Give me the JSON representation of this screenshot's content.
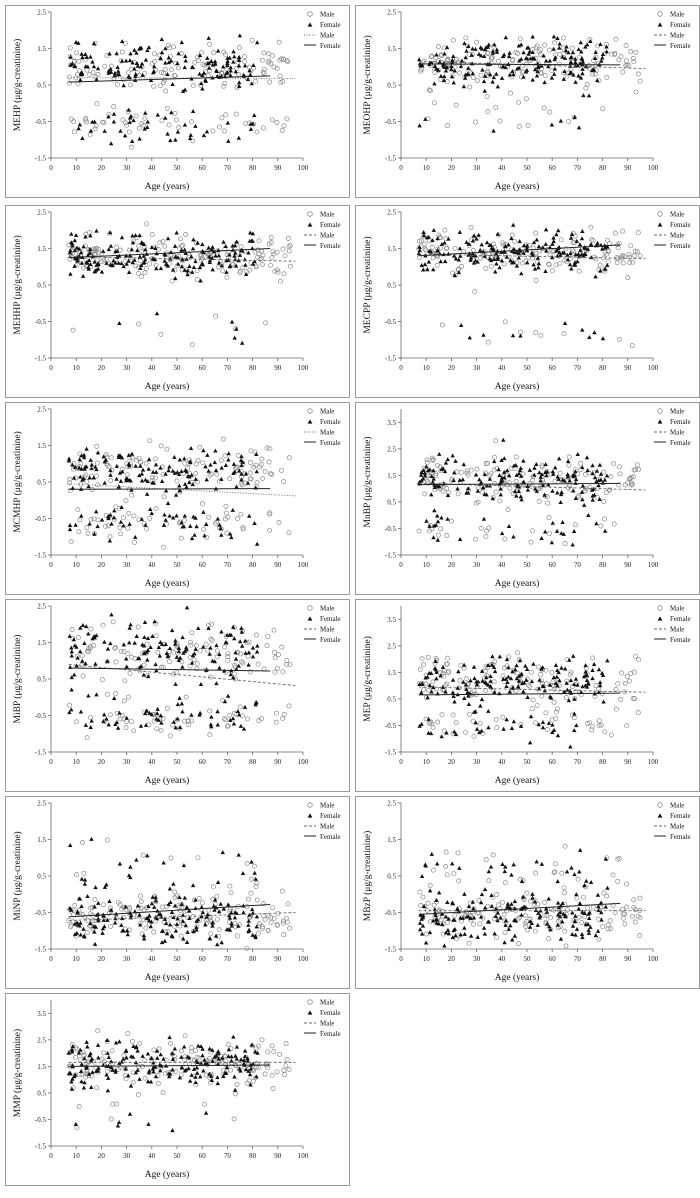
{
  "legend_labels": [
    "Male",
    "Female",
    "Male",
    "Female"
  ],
  "colors": {
    "male_marker": "#8a8a8a",
    "female_marker": "#111111",
    "male_line": "#666666",
    "female_line": "#222222"
  },
  "chart_data": [
    {
      "type": "scatter",
      "xlabel": "Age (years)",
      "ylabel": "MEHP (μg/g-creatinine)",
      "xlim": [
        0,
        100
      ],
      "xticks": [
        0,
        10,
        20,
        30,
        40,
        50,
        60,
        70,
        80,
        90,
        100
      ],
      "ylim": [
        -1.5,
        2.5
      ],
      "yticks": [
        "-1.5",
        "-0.5",
        "0.5",
        "1.5",
        "2.5"
      ],
      "upper_mean": 1.0,
      "upper_sd": 0.32,
      "lower_mean": -0.6,
      "lower_sd": 0.22,
      "lower_frac": 0.22,
      "trend_male": [
        [
          7,
          0.7
        ],
        [
          97,
          0.68
        ]
      ],
      "trend_female": [
        [
          7,
          0.58
        ],
        [
          87,
          0.75
        ]
      ],
      "male_line_style": "dotted"
    },
    {
      "type": "scatter",
      "xlabel": "Age (years)",
      "ylabel": "MEOHP (μg/g-creatinine)",
      "xlim": [
        0,
        100
      ],
      "xticks": [
        0,
        10,
        20,
        30,
        40,
        50,
        60,
        70,
        80,
        90,
        100
      ],
      "ylim": [
        -1.5,
        2.5
      ],
      "yticks": [
        "-1.5",
        "-0.5",
        "0.5",
        "1.5",
        "2.5"
      ],
      "upper_mean": 1.1,
      "upper_sd": 0.3,
      "lower_mean": -0.35,
      "lower_sd": 0.3,
      "lower_frac": 0.07,
      "trend_male": [
        [
          7,
          1.15
        ],
        [
          97,
          0.95
        ]
      ],
      "trend_female": [
        [
          7,
          1.08
        ],
        [
          87,
          1.05
        ]
      ],
      "male_line_style": "dashed"
    },
    {
      "type": "scatter",
      "xlabel": "Age (years)",
      "ylabel": "MEHHP (μg/g-creatinine)",
      "xlim": [
        0,
        100
      ],
      "xticks": [
        0,
        10,
        20,
        30,
        40,
        50,
        60,
        70,
        80,
        90,
        100
      ],
      "ylim": [
        -1.5,
        2.5
      ],
      "yticks": [
        "-1.5",
        "-0.5",
        "0.5",
        "1.5",
        "2.5"
      ],
      "upper_mean": 1.3,
      "upper_sd": 0.27,
      "lower_mean": -0.7,
      "lower_sd": 0.2,
      "lower_frac": 0.03,
      "trend_male": [
        [
          7,
          1.28
        ],
        [
          97,
          1.15
        ]
      ],
      "trend_female": [
        [
          7,
          1.25
        ],
        [
          87,
          1.5
        ]
      ],
      "male_line_style": "dashed"
    },
    {
      "type": "scatter",
      "xlabel": "Age (years)",
      "ylabel": "MECPP (μg/g-creatinine)",
      "xlim": [
        0,
        100
      ],
      "xticks": [
        0,
        10,
        20,
        30,
        40,
        50,
        60,
        70,
        80,
        90,
        100
      ],
      "ylim": [
        -1.5,
        2.5
      ],
      "yticks": [
        "-1.5",
        "-0.5",
        "0.5",
        "1.5",
        "2.5"
      ],
      "upper_mean": 1.4,
      "upper_sd": 0.3,
      "lower_mean": -0.85,
      "lower_sd": 0.2,
      "lower_frac": 0.04,
      "trend_male": [
        [
          7,
          1.35
        ],
        [
          97,
          1.22
        ]
      ],
      "trend_female": [
        [
          7,
          1.3
        ],
        [
          87,
          1.6
        ]
      ],
      "male_line_style": "dashed"
    },
    {
      "type": "scatter",
      "xlabel": "Age (years)",
      "ylabel": "MCMHP (μg/g-creatinine)",
      "xlim": [
        0,
        100
      ],
      "xticks": [
        0,
        10,
        20,
        30,
        40,
        50,
        60,
        70,
        80,
        90,
        100
      ],
      "ylim": [
        -1.5,
        2.5
      ],
      "yticks": [
        "-1.5",
        "-0.5",
        "0.5",
        "1.5",
        "2.5"
      ],
      "upper_mean": 0.8,
      "upper_sd": 0.3,
      "lower_mean": -0.65,
      "lower_sd": 0.22,
      "lower_frac": 0.3,
      "trend_male": [
        [
          7,
          0.45
        ],
        [
          97,
          0.12
        ]
      ],
      "trend_female": [
        [
          7,
          0.3
        ],
        [
          87,
          0.32
        ]
      ],
      "male_line_style": "dotted"
    },
    {
      "type": "scatter",
      "xlabel": "Age (years)",
      "ylabel": "MnBP (μg/g-creatinine)",
      "xlim": [
        0,
        100
      ],
      "xticks": [
        0,
        10,
        20,
        30,
        40,
        50,
        60,
        70,
        80,
        90,
        100
      ],
      "ylim": [
        -1.5,
        4
      ],
      "yticks": [
        "-1.5",
        "-0.5",
        "0.5",
        "1.5",
        "2.5",
        "3.5"
      ],
      "upper_mean": 1.35,
      "upper_sd": 0.45,
      "lower_mean": -0.6,
      "lower_sd": 0.3,
      "lower_frac": 0.12,
      "trend_male": [
        [
          7,
          1.2
        ],
        [
          97,
          0.95
        ]
      ],
      "trend_female": [
        [
          7,
          1.15
        ],
        [
          87,
          1.2
        ]
      ],
      "male_line_style": "dashed"
    },
    {
      "type": "scatter",
      "xlabel": "Age (years)",
      "ylabel": "MiBP (μg/g-creatinine)",
      "xlim": [
        0,
        100
      ],
      "xticks": [
        0,
        10,
        20,
        30,
        40,
        50,
        60,
        70,
        80,
        90,
        100
      ],
      "ylim": [
        -1.5,
        2.5
      ],
      "yticks": [
        "-1.5",
        "-0.5",
        "0.5",
        "1.5",
        "2.5"
      ],
      "upper_mean": 1.2,
      "upper_sd": 0.4,
      "lower_mean": -0.55,
      "lower_sd": 0.25,
      "lower_frac": 0.28,
      "trend_male": [
        [
          7,
          0.9
        ],
        [
          97,
          0.32
        ]
      ],
      "trend_female": [
        [
          7,
          0.8
        ],
        [
          87,
          0.72
        ]
      ],
      "male_line_style": "dashed"
    },
    {
      "type": "scatter",
      "xlabel": "Age (years)",
      "ylabel": "MEP (μg/g-creatinine)",
      "xlim": [
        0,
        100
      ],
      "xticks": [
        0,
        10,
        20,
        30,
        40,
        50,
        60,
        70,
        80,
        90,
        100
      ],
      "ylim": [
        -1.5,
        4
      ],
      "yticks": [
        "-1.5",
        "-0.5",
        "0.5",
        "1.5",
        "2.5",
        "3.5"
      ],
      "upper_mean": 1.2,
      "upper_sd": 0.45,
      "lower_mean": -0.5,
      "lower_sd": 0.3,
      "lower_frac": 0.22,
      "trend_male": [
        [
          7,
          0.95
        ],
        [
          97,
          0.75
        ]
      ],
      "trend_female": [
        [
          7,
          0.65
        ],
        [
          87,
          0.72
        ]
      ],
      "male_line_style": "dashed"
    },
    {
      "type": "scatter",
      "xlabel": "Age (years)",
      "ylabel": "MiNP (μg/g-creatinine)",
      "xlim": [
        0,
        100
      ],
      "xticks": [
        0,
        10,
        20,
        30,
        40,
        50,
        60,
        70,
        80,
        90,
        100
      ],
      "ylim": [
        -1.5,
        2.5
      ],
      "yticks": [
        "-1.5",
        "-0.5",
        "0.5",
        "1.5",
        "2.5"
      ],
      "upper_mean": 0.4,
      "upper_sd": 0.45,
      "lower_mean": -0.65,
      "lower_sd": 0.3,
      "lower_frac": 0.85,
      "trend_male": [
        [
          7,
          -0.72
        ],
        [
          97,
          -0.5
        ]
      ],
      "trend_female": [
        [
          7,
          -0.62
        ],
        [
          87,
          -0.28
        ]
      ],
      "male_line_style": "dashed"
    },
    {
      "type": "scatter",
      "xlabel": "Age (years)",
      "ylabel": "MBzP (μg/g-creatinine)",
      "xlim": [
        0,
        100
      ],
      "xticks": [
        0,
        10,
        20,
        30,
        40,
        50,
        60,
        70,
        80,
        90,
        100
      ],
      "ylim": [
        -1.5,
        2.5
      ],
      "yticks": [
        "-1.5",
        "-0.5",
        "0.5",
        "1.5",
        "2.5"
      ],
      "upper_mean": 0.55,
      "upper_sd": 0.4,
      "lower_mean": -0.65,
      "lower_sd": 0.32,
      "lower_frac": 0.8,
      "trend_male": [
        [
          7,
          -0.45
        ],
        [
          97,
          -0.45
        ]
      ],
      "trend_female": [
        [
          7,
          -0.55
        ],
        [
          87,
          -0.25
        ]
      ],
      "male_line_style": "dashed"
    },
    {
      "type": "scatter",
      "xlabel": "Age (years)",
      "ylabel": "MMP (μg/g-creatinine)",
      "xlim": [
        0,
        100
      ],
      "xticks": [
        0,
        10,
        20,
        30,
        40,
        50,
        60,
        70,
        80,
        90,
        100
      ],
      "ylim": [
        -1.5,
        4
      ],
      "yticks": [
        "-1.5",
        "-0.5",
        "0.5",
        "1.5",
        "2.5",
        "3.5"
      ],
      "upper_mean": 1.55,
      "upper_sd": 0.45,
      "lower_mean": -0.3,
      "lower_sd": 0.3,
      "lower_frac": 0.03,
      "trend_male": [
        [
          7,
          1.65
        ],
        [
          97,
          1.65
        ]
      ],
      "trend_female": [
        [
          7,
          1.5
        ],
        [
          87,
          1.55
        ]
      ],
      "male_line_style": "dashed"
    }
  ]
}
